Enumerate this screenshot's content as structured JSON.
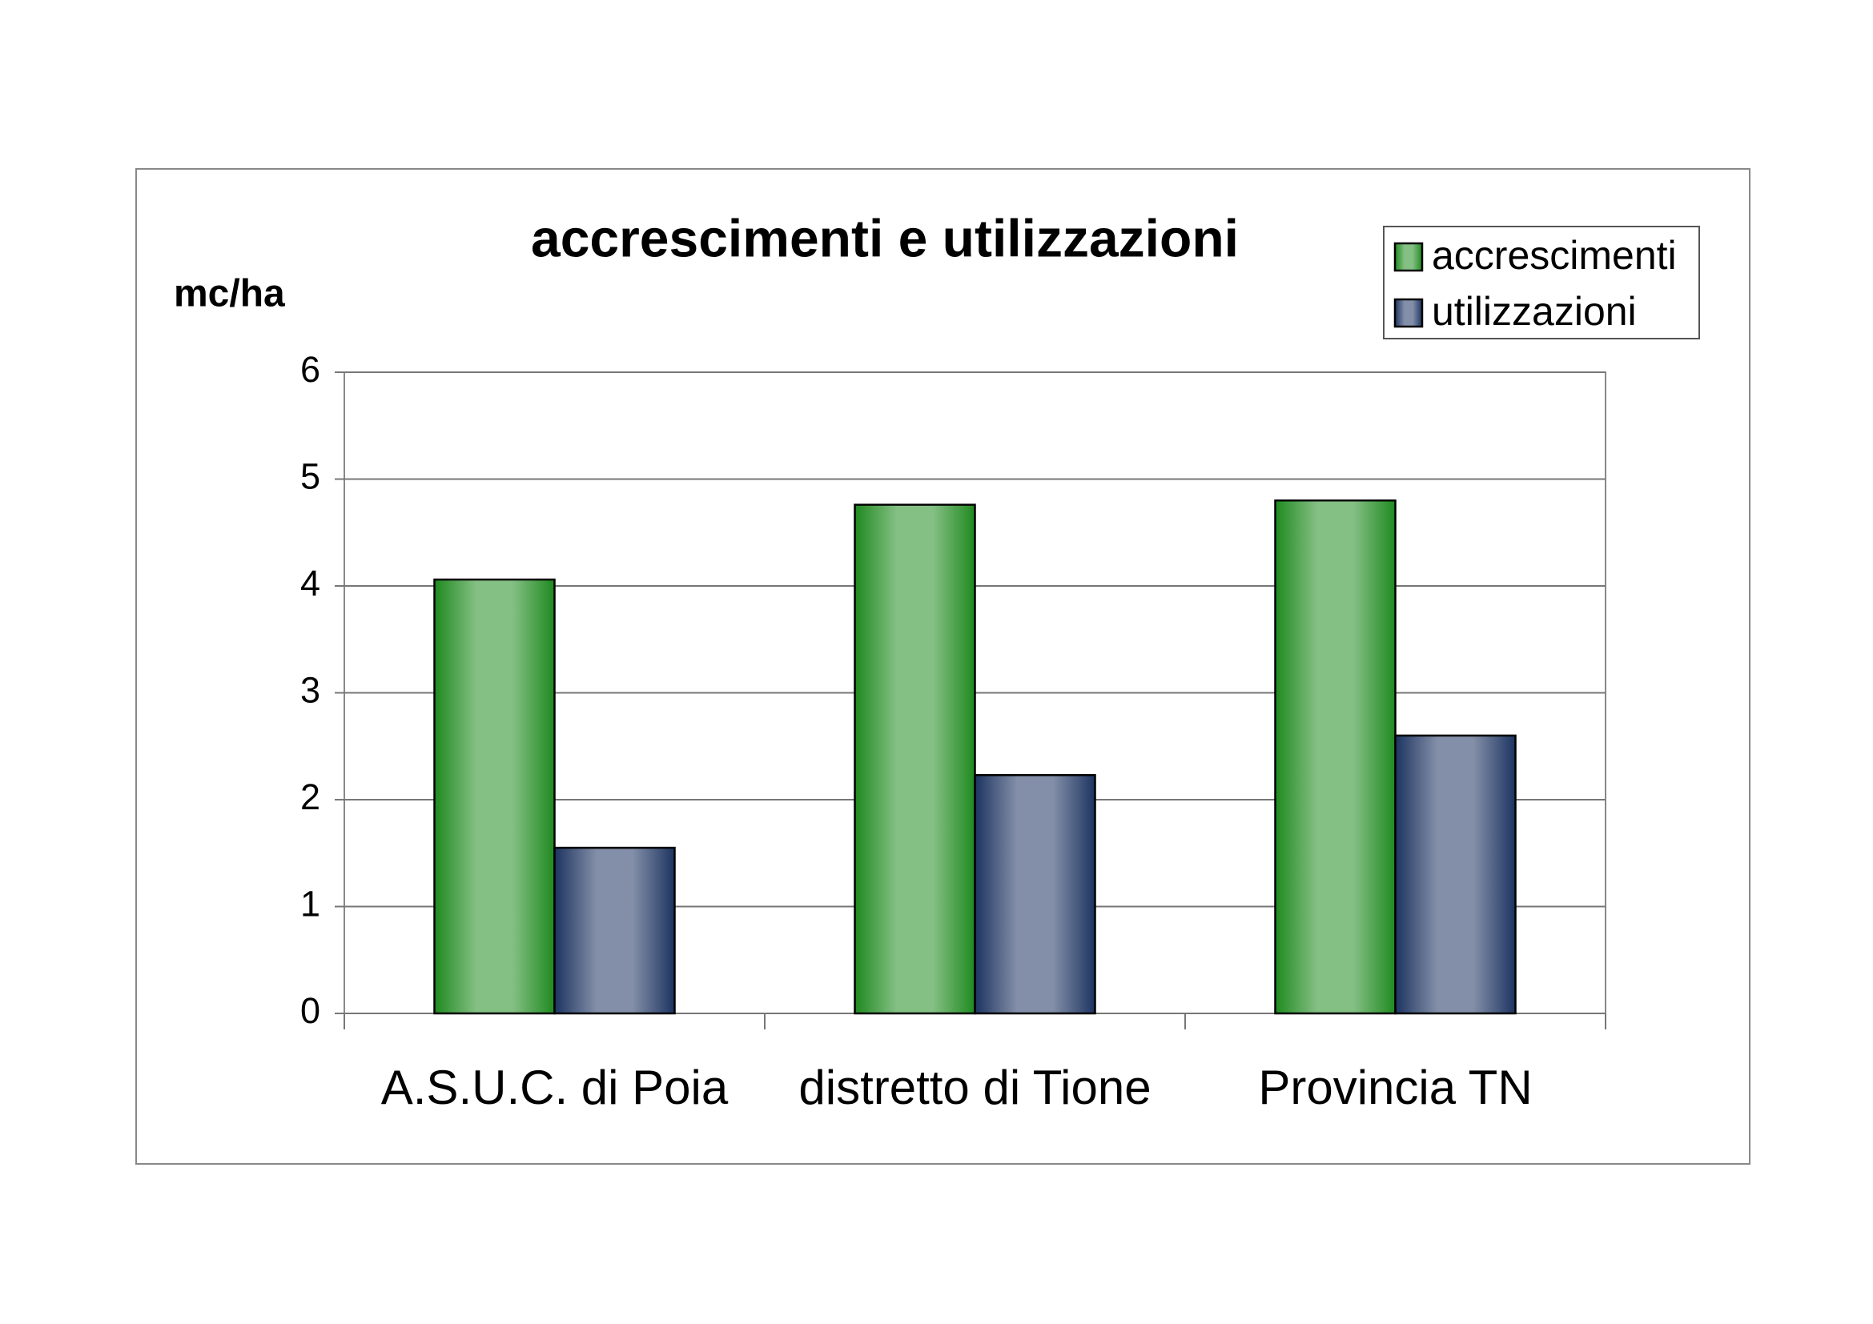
{
  "chart_data": {
    "type": "bar",
    "title": "accrescimenti e utilizzazioni",
    "y_label": "mc/ha",
    "categories": [
      "A.S.U.C. di Poia",
      "distretto di Tione",
      "Provincia TN"
    ],
    "series": [
      {
        "name": "accrescimenti",
        "color": "#1f8a1f",
        "values": [
          4.06,
          4.76,
          4.8
        ]
      },
      {
        "name": "utilizzazioni",
        "color": "#1d3461",
        "values": [
          1.55,
          2.23,
          2.6
        ]
      }
    ],
    "ylim": [
      0,
      6
    ],
    "yticks": [
      0,
      1,
      2,
      3,
      4,
      5,
      6
    ],
    "grid": true,
    "legend": "top-right"
  }
}
